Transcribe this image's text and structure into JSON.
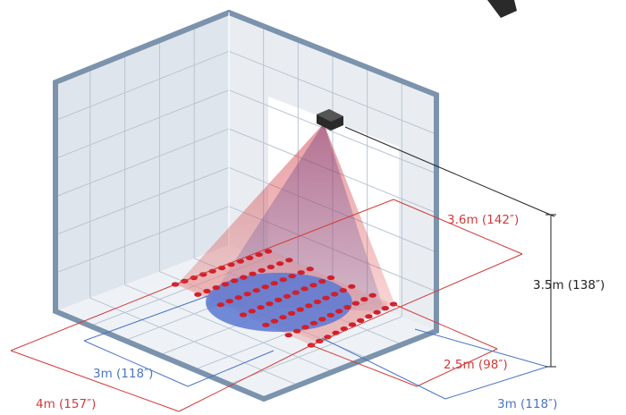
{
  "colors": {
    "red_dim": "#d23a3a",
    "blue_dim": "#4a74c4",
    "black_dim": "#222222",
    "frame": "#7b93ad",
    "wall": "#dfe5ec",
    "floor": "#eef2f6",
    "dot": "#d21f2a",
    "red_cone": "#d9484c",
    "blue_cone": "#4d6fd0"
  },
  "dimensions": {
    "red_top": "3.6m (142″)",
    "red_right": "2.5m (98″)",
    "red_left": "4m (157″)",
    "blue_left": "3m (118″)",
    "blue_right": "3m (118″)",
    "height": "3.5m (138″)"
  }
}
